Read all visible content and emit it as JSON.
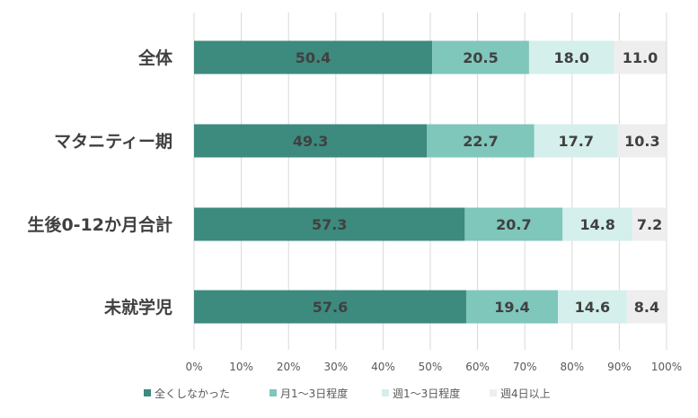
{
  "chart_data": {
    "type": "bar",
    "orientation": "horizontal",
    "stacked": true,
    "categories": [
      "全体",
      "マタニティー期",
      "生後0-12か月合計",
      "未就学児"
    ],
    "series": [
      {
        "name": "全くしなかった",
        "values": [
          50.4,
          49.3,
          57.3,
          57.6
        ],
        "color": "#3d8a7e"
      },
      {
        "name": "月1～3日程度",
        "values": [
          20.5,
          22.7,
          20.7,
          19.4
        ],
        "color": "#7fc6bb"
      },
      {
        "name": "週1～3日程度",
        "values": [
          18.0,
          17.7,
          14.8,
          14.6
        ],
        "color": "#d4efec"
      },
      {
        "name": "週4日以上",
        "values": [
          11.0,
          10.3,
          7.2,
          8.4
        ],
        "color": "#eeeeee"
      }
    ],
    "x_ticks": [
      "0%",
      "10%",
      "20%",
      "30%",
      "40%",
      "50%",
      "60%",
      "70%",
      "80%",
      "90%",
      "100%"
    ],
    "xlim": [
      0,
      100
    ],
    "grid": true,
    "legend_position": "bottom"
  }
}
